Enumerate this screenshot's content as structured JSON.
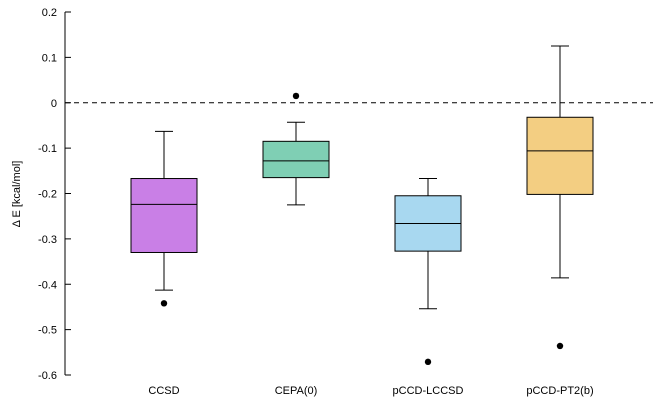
{
  "chart_data": {
    "type": "box",
    "title": "",
    "xlabel": "",
    "ylabel": "Δ E  [kcal/mol]",
    "ylim": [
      -0.6,
      0.2
    ],
    "yticks": [
      "0.2",
      "0.1",
      "0",
      "-0.1",
      "-0.2",
      "-0.3",
      "-0.4",
      "-0.5",
      "-0.6"
    ],
    "reference_line": 0,
    "grid": false,
    "categories": [
      "CCSD",
      "CEPA(0)",
      "pCCD-LCCSD",
      "pCCD-PT2(b)"
    ],
    "boxes": [
      {
        "whisker_low": -0.413,
        "q1": -0.33,
        "median": -0.224,
        "q3": -0.167,
        "whisker_high": -0.063,
        "outliers": [
          -0.442
        ],
        "color": "#c97fe6"
      },
      {
        "whisker_low": -0.225,
        "q1": -0.165,
        "median": -0.128,
        "q3": -0.085,
        "whisker_high": -0.043,
        "outliers": [
          0.015
        ],
        "color": "#7fcfb4"
      },
      {
        "whisker_low": -0.454,
        "q1": -0.327,
        "median": -0.266,
        "q3": -0.205,
        "whisker_high": -0.167,
        "outliers": [
          -0.571
        ],
        "color": "#a8d8f0"
      },
      {
        "whisker_low": -0.386,
        "q1": -0.202,
        "median": -0.106,
        "q3": -0.032,
        "whisker_high": 0.125,
        "outliers": [
          -0.536
        ],
        "color": "#f3ce82"
      }
    ]
  }
}
